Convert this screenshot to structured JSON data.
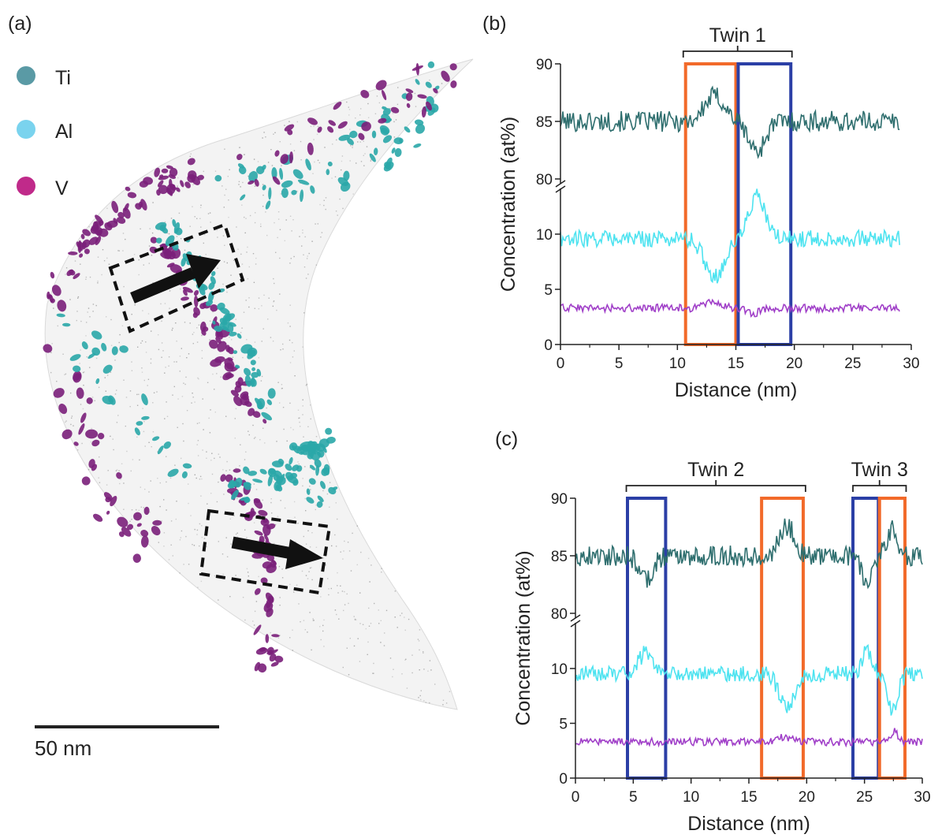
{
  "panels": {
    "a": {
      "label": "(a)",
      "legend": [
        {
          "name": "Ti",
          "color": "#5a9aa5"
        },
        {
          "name": "Al",
          "color": "#7ad3ee"
        },
        {
          "name": "V",
          "color": "#c02a8a"
        }
      ],
      "scale_bar_label": "50 nm"
    },
    "b": {
      "label": "(b)"
    },
    "c": {
      "label": "(c)"
    }
  },
  "colors": {
    "ti_line": "#2e6e6e",
    "al_line": "#4ee3f0",
    "v_line": "#a03fc8",
    "orange_box": "#f26a2a",
    "blue_box": "#2b3fa6",
    "ti_iso": "#2aa7a8",
    "v_iso": "#7a1f7a"
  },
  "chart_data": [
    {
      "type": "line",
      "panel": "(b)",
      "xlabel": "Distance (nm)",
      "ylabel": "Concentration (at%)",
      "xlim": [
        0,
        30
      ],
      "xticks": [
        0,
        5,
        10,
        15,
        20,
        25,
        30
      ],
      "y_lower_ticks": [
        0,
        5,
        10
      ],
      "y_upper_ticks": [
        80,
        85,
        90
      ],
      "x_end": 29,
      "twins": [
        {
          "label": "Twin 1",
          "x0": 10.5,
          "x1": 19.8
        }
      ],
      "boxes": [
        {
          "color": "orange",
          "x0": 10.7,
          "x1": 15.0
        },
        {
          "color": "blue",
          "x0": 15.2,
          "x1": 19.7
        }
      ],
      "series": [
        {
          "name": "Ti",
          "baseline": 85,
          "features": [
            [
              13.2,
              2.2,
              1.6
            ],
            [
              16.8,
              -2.6,
              1.3
            ]
          ]
        },
        {
          "name": "Al",
          "baseline": 9.6,
          "features": [
            [
              13.2,
              -3.4,
              1.6
            ],
            [
              16.8,
              3.8,
              1.3
            ]
          ]
        },
        {
          "name": "V",
          "baseline": 3.3,
          "features": [
            [
              13.0,
              0.6,
              1.2
            ],
            [
              16.5,
              -0.5,
              1.0
            ]
          ]
        }
      ]
    },
    {
      "type": "line",
      "panel": "(c)",
      "xlabel": "Distance (nm)",
      "ylabel": "Concentration (at%)",
      "xlim": [
        0,
        30
      ],
      "xticks": [
        0,
        5,
        10,
        15,
        20,
        25,
        30
      ],
      "y_lower_ticks": [
        0,
        5,
        10
      ],
      "y_upper_ticks": [
        80,
        85,
        90
      ],
      "x_end": 30,
      "twins": [
        {
          "label": "Twin 2",
          "x0": 4.4,
          "x1": 19.9
        },
        {
          "label": "Twin 3",
          "x0": 24.0,
          "x1": 28.6
        }
      ],
      "boxes": [
        {
          "color": "blue",
          "x0": 4.5,
          "x1": 7.8
        },
        {
          "color": "orange",
          "x0": 16.1,
          "x1": 19.7
        },
        {
          "color": "blue",
          "x0": 24.0,
          "x1": 26.2
        },
        {
          "color": "orange",
          "x0": 26.3,
          "x1": 28.5
        }
      ],
      "series": [
        {
          "name": "Ti",
          "baseline": 85,
          "features": [
            [
              6.1,
              -2.0,
              1.1
            ],
            [
              18.3,
              2.6,
              1.2
            ],
            [
              25.2,
              -2.2,
              0.8
            ],
            [
              27.4,
              2.2,
              0.9
            ]
          ]
        },
        {
          "name": "Al",
          "baseline": 9.5,
          "features": [
            [
              6.1,
              2.0,
              1.1
            ],
            [
              18.3,
              -3.2,
              1.2
            ],
            [
              25.2,
              2.2,
              0.8
            ],
            [
              27.4,
              -3.2,
              0.9
            ]
          ]
        },
        {
          "name": "V",
          "baseline": 3.3,
          "features": [
            [
              18.0,
              0.4,
              1.2
            ],
            [
              27.6,
              1.0,
              0.5
            ]
          ]
        }
      ]
    }
  ]
}
